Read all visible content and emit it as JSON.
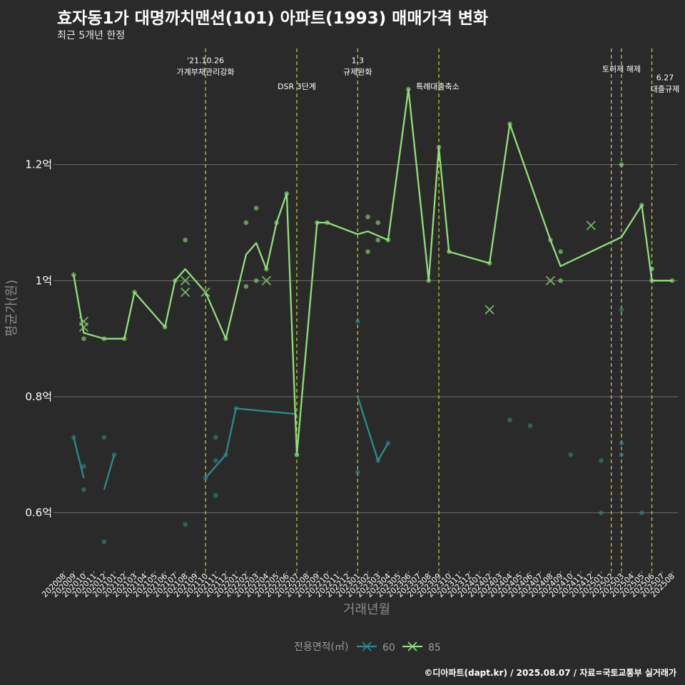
{
  "title": "효자동1가 대명까치맨션(101) 아파트(1993) 매매가격 변화",
  "subtitle": "최근 5개년 한정",
  "caption": "©디아파트(dapt.kr) / 2025.08.07 / 자료=국토교통부 실거래가",
  "colors": {
    "background": "#2b2a2a",
    "grid": "#6e6e6e",
    "event_line": "#d4d42a",
    "series_60": "#2a8c8c",
    "series_85": "#8ee07a"
  },
  "chart_data": {
    "type": "line",
    "xlabel": "거래년월",
    "ylabel": "평균가(원)",
    "ylim": [
      0.5,
      1.4
    ],
    "y_ticks": [
      {
        "value": 0.6,
        "label": "0.6억"
      },
      {
        "value": 0.8,
        "label": "0.8억"
      },
      {
        "value": 1.0,
        "label": "1억"
      },
      {
        "value": 1.2,
        "label": "1.2억"
      }
    ],
    "x_ticks": [
      "202008",
      "202009",
      "202010",
      "202011",
      "202012",
      "202101",
      "202102",
      "202103",
      "202104",
      "202105",
      "202106",
      "202107",
      "202108",
      "202109",
      "202110",
      "202111",
      "202112",
      "202201",
      "202202",
      "202203",
      "202204",
      "202205",
      "202206",
      "202207",
      "202208",
      "202209",
      "202210",
      "202211",
      "202212",
      "202301",
      "202302",
      "202303",
      "202304",
      "202305",
      "202306",
      "202307",
      "202308",
      "202309",
      "202310",
      "202311",
      "202312",
      "202401",
      "202402",
      "202403",
      "202404",
      "202405",
      "202406",
      "202407",
      "202408",
      "202409",
      "202410",
      "202411",
      "202412",
      "202501",
      "202502",
      "202503",
      "202504",
      "202505",
      "202506",
      "202507",
      "202508"
    ],
    "legend_title": "전용면적(㎡)",
    "events": [
      {
        "month": "202110",
        "lines": [
          "'21.10.26",
          "가계부채관리강화"
        ],
        "label_y": 1.375
      },
      {
        "month": "202207",
        "lines": [
          "DSR 3단계"
        ],
        "label_y": 1.33
      },
      {
        "month": "202301",
        "lines": [
          "1.3",
          "규제완화"
        ],
        "label_y": 1.375
      },
      {
        "month": "202309",
        "lines": [
          "특례대출축소"
        ],
        "label_y": 1.33,
        "label_side": "left"
      },
      {
        "month": "202502",
        "lines": [
          "토허제 해제"
        ],
        "label_y": 1.36,
        "label_shift": 1
      },
      {
        "month": "202503",
        "lines": [],
        "label_y": 1.36
      },
      {
        "month": "202506",
        "lines": [
          "6.27",
          "대출규제"
        ],
        "label_y": 1.345,
        "label_shift": 1.3
      }
    ],
    "series": [
      {
        "name": "60",
        "color": "#2a8c8c",
        "lines": [
          [
            [
              "202009",
              0.73
            ],
            [
              "202010",
              0.66
            ]
          ],
          [
            [
              "202012",
              0.64
            ],
            [
              "202101",
              0.7
            ]
          ],
          [
            [
              "202110",
              0.66
            ],
            [
              "202111",
              0.68
            ],
            [
              "202112",
              0.7
            ],
            [
              "202201",
              0.78
            ],
            [
              "202207",
              0.77
            ]
          ],
          [
            [
              "202301",
              0.8
            ],
            [
              "202303",
              0.69
            ],
            [
              "202304",
              0.72
            ]
          ]
        ],
        "points": [
          [
            "202009",
            0.73
          ],
          [
            "202010",
            0.68
          ],
          [
            "202010",
            0.64
          ],
          [
            "202012",
            0.73
          ],
          [
            "202012",
            0.55
          ],
          [
            "202101",
            0.7
          ],
          [
            "202108",
            0.58
          ],
          [
            "202110",
            0.66
          ],
          [
            "202111",
            0.73
          ],
          [
            "202111",
            0.69
          ],
          [
            "202111",
            0.63
          ],
          [
            "202112",
            0.7
          ],
          [
            "202201",
            0.78
          ],
          [
            "202207",
            0.7
          ],
          [
            "202301",
            0.67
          ],
          [
            "202301",
            0.93
          ],
          [
            "202303",
            0.69
          ],
          [
            "202304",
            0.72
          ],
          [
            "202404",
            0.76
          ],
          [
            "202406",
            0.75
          ],
          [
            "202410",
            0.7
          ],
          [
            "202501",
            0.69
          ],
          [
            "202501",
            0.6
          ],
          [
            "202503",
            0.72
          ],
          [
            "202503",
            0.7
          ],
          [
            "202503",
            0.95
          ],
          [
            "202505",
            0.6
          ]
        ],
        "x_marks": []
      },
      {
        "name": "85",
        "color": "#8ee07a",
        "lines": [
          [
            [
              "202009",
              1.01
            ],
            [
              "202010",
              0.91
            ],
            [
              "202012",
              0.9
            ],
            [
              "202102",
              0.9
            ],
            [
              "202103",
              0.98
            ],
            [
              "202106",
              0.92
            ],
            [
              "202107",
              1.0
            ],
            [
              "202108",
              1.02
            ],
            [
              "202110",
              0.98
            ],
            [
              "202112",
              0.9
            ],
            [
              "202202",
              1.045
            ],
            [
              "202203",
              1.065
            ],
            [
              "202204",
              1.02
            ],
            [
              "202205",
              1.1
            ],
            [
              "202206",
              1.15
            ],
            [
              "202207",
              0.7
            ],
            [
              "202209",
              1.1
            ],
            [
              "202210",
              1.1
            ],
            [
              "202301",
              1.08
            ],
            [
              "202302",
              1.085
            ],
            [
              "202304",
              1.07
            ],
            [
              "202306",
              1.33
            ],
            [
              "202308",
              1.0
            ],
            [
              "202309",
              1.23
            ],
            [
              "202310",
              1.05
            ],
            [
              "202402",
              1.03
            ],
            [
              "202404",
              1.27
            ],
            [
              "202408",
              1.07
            ],
            [
              "202409",
              1.025
            ],
            [
              "202503",
              1.075
            ],
            [
              "202505",
              1.13
            ],
            [
              "202506",
              1.0
            ],
            [
              "202508",
              1.0
            ]
          ]
        ],
        "points": [
          [
            "202009",
            1.01
          ],
          [
            "202010",
            0.9
          ],
          [
            "202012",
            0.9
          ],
          [
            "202102",
            0.9
          ],
          [
            "202103",
            0.98
          ],
          [
            "202106",
            0.92
          ],
          [
            "202107",
            1.0
          ],
          [
            "202108",
            1.07
          ],
          [
            "202112",
            0.9
          ],
          [
            "202202",
            1.1
          ],
          [
            "202202",
            0.99
          ],
          [
            "202203",
            1.125
          ],
          [
            "202203",
            1.0
          ],
          [
            "202204",
            1.02
          ],
          [
            "202205",
            1.1
          ],
          [
            "202206",
            1.15
          ],
          [
            "202207",
            0.7
          ],
          [
            "202209",
            1.1
          ],
          [
            "202210",
            1.1
          ],
          [
            "202302",
            1.11
          ],
          [
            "202302",
            1.05
          ],
          [
            "202303",
            1.1
          ],
          [
            "202303",
            1.07
          ],
          [
            "202304",
            1.07
          ],
          [
            "202306",
            1.33
          ],
          [
            "202308",
            1.0
          ],
          [
            "202309",
            1.23
          ],
          [
            "202310",
            1.05
          ],
          [
            "202402",
            1.03
          ],
          [
            "202404",
            1.27
          ],
          [
            "202408",
            1.07
          ],
          [
            "202409",
            1.05
          ],
          [
            "202409",
            1.0
          ],
          [
            "202503",
            1.2
          ],
          [
            "202505",
            1.13
          ],
          [
            "202506",
            1.02
          ],
          [
            "202506",
            1.0
          ],
          [
            "202508",
            1.0
          ]
        ],
        "x_marks": [
          [
            "202010",
            0.93
          ],
          [
            "202010",
            0.92
          ],
          [
            "202108",
            1.0
          ],
          [
            "202108",
            0.98
          ],
          [
            "202110",
            0.98
          ],
          [
            "202204",
            1.0
          ],
          [
            "202402",
            0.95
          ],
          [
            "202408",
            1.0
          ],
          [
            "202412",
            1.095
          ]
        ]
      }
    ]
  }
}
